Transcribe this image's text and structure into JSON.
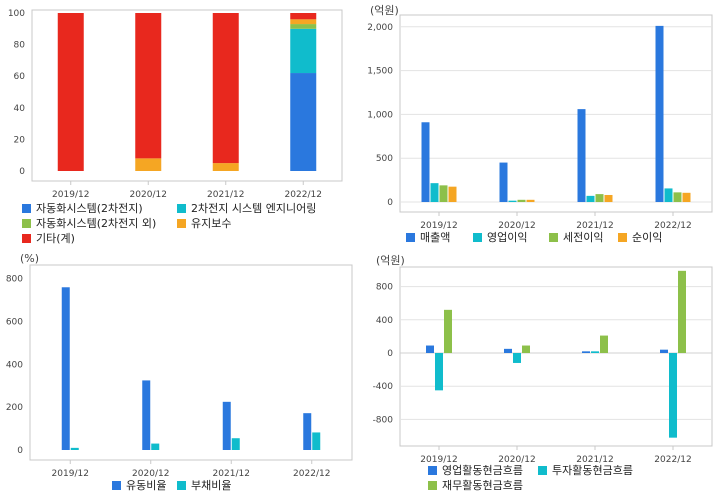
{
  "chart_data": [
    {
      "id": "c1",
      "type": "bar",
      "stacked": true,
      "categories": [
        "2019/12",
        "2020/12",
        "2021/12",
        "2022/12"
      ],
      "ylim": [
        0,
        100
      ],
      "yticks": [
        0,
        20,
        40,
        60,
        80,
        100
      ],
      "unit": "",
      "grid": false,
      "series": [
        {
          "name": "자동화시스템(2차전지)",
          "color": "#2a78de",
          "values": [
            0,
            0,
            0,
            62
          ]
        },
        {
          "name": "2차전지 시스템 엔지니어링",
          "color": "#10bccc",
          "values": [
            0,
            0,
            0,
            28
          ]
        },
        {
          "name": "자동화시스템(2차전지 외)",
          "color": "#8dc04a",
          "values": [
            0,
            0,
            0,
            3
          ]
        },
        {
          "name": "유지보수",
          "color": "#f5a623",
          "values": [
            0,
            8,
            5,
            3
          ]
        },
        {
          "name": "기타(계)",
          "color": "#e8281e",
          "values": [
            100,
            92,
            95,
            4
          ]
        }
      ]
    },
    {
      "id": "c2",
      "type": "bar",
      "categories": [
        "2019/12",
        "2020/12",
        "2021/12",
        "2022/12"
      ],
      "ylim": [
        0,
        2100
      ],
      "yticks": [
        0,
        500,
        1000,
        1500,
        2000
      ],
      "ytick_labels": [
        "0",
        "500",
        "1,000",
        "1,500",
        "2,000"
      ],
      "unit": "(억원)",
      "grid": true,
      "series": [
        {
          "name": "매출액",
          "color": "#2a78de",
          "values": [
            910,
            450,
            1060,
            2010
          ]
        },
        {
          "name": "영업이익",
          "color": "#10bccc",
          "values": [
            215,
            15,
            70,
            155
          ]
        },
        {
          "name": "세전이익",
          "color": "#8dc04a",
          "values": [
            190,
            25,
            90,
            110
          ]
        },
        {
          "name": "순이익",
          "color": "#f5a623",
          "values": [
            175,
            25,
            80,
            105
          ]
        }
      ]
    },
    {
      "id": "c3",
      "type": "bar",
      "categories": [
        "2019/12",
        "2020/12",
        "2021/12",
        "2022/12"
      ],
      "ylim": [
        0,
        850
      ],
      "yticks": [
        0,
        200,
        400,
        600,
        800
      ],
      "ytick_labels": [
        "0",
        "200",
        "400",
        "600",
        "800"
      ],
      "unit": "(%)",
      "grid": false,
      "series": [
        {
          "name": "유동비율",
          "color": "#2a78de",
          "values": [
            760,
            325,
            225,
            172
          ]
        },
        {
          "name": "부채비율",
          "color": "#10bccc",
          "values": [
            10,
            30,
            55,
            82
          ]
        }
      ]
    },
    {
      "id": "c4",
      "type": "bar",
      "categories": [
        "2019/12",
        "2020/12",
        "2021/12",
        "2022/12"
      ],
      "ylim": [
        -1000,
        1000
      ],
      "yticks": [
        -800,
        -400,
        0,
        400,
        800
      ],
      "ytick_labels": [
        "-800",
        "-400",
        "0",
        "400",
        "800"
      ],
      "unit": "(억원)",
      "grid": true,
      "series": [
        {
          "name": "영업활동현금흐름",
          "color": "#2a78de",
          "values": [
            90,
            50,
            20,
            40
          ]
        },
        {
          "name": "투자활동현금흐름",
          "color": "#10bccc",
          "values": [
            -450,
            -120,
            20,
            -1020
          ]
        },
        {
          "name": "재무활동현금흐름",
          "color": "#8dc04a",
          "values": [
            520,
            90,
            210,
            990
          ]
        }
      ]
    }
  ]
}
